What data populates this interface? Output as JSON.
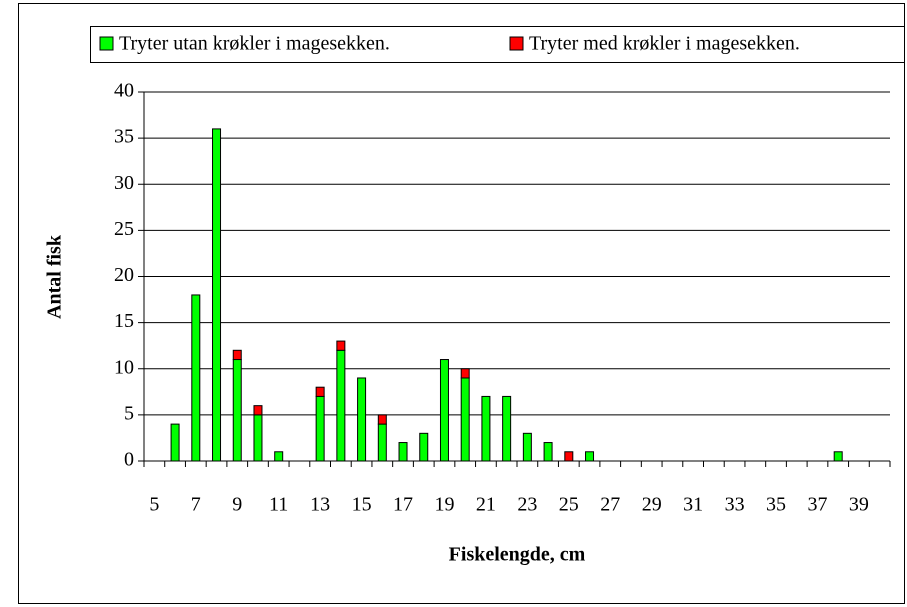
{
  "chart_data": {
    "type": "bar",
    "stacked": true,
    "x_label": "Fiskelengde, cm",
    "y_label": "Antal fisk",
    "categories": [
      "5",
      null,
      "7",
      null,
      "9",
      null,
      "11",
      null,
      "13",
      null,
      "15",
      null,
      "17",
      null,
      "19",
      null,
      "21",
      null,
      "23",
      null,
      "25",
      null,
      "27",
      null,
      "29",
      null,
      "31",
      null,
      "33",
      null,
      "35",
      null,
      "37",
      null,
      "39",
      null
    ],
    "series": [
      {
        "name": "Tryter utan krøkler i magesekken.",
        "color": "#00ff00",
        "values": [
          0,
          4,
          18,
          36,
          11,
          5,
          1,
          0,
          7,
          12,
          9,
          4,
          2,
          3,
          11,
          9,
          7,
          7,
          3,
          2,
          0,
          1,
          0,
          0,
          0,
          0,
          0,
          0,
          0,
          0,
          0,
          0,
          0,
          1,
          0,
          0
        ]
      },
      {
        "name": "Tryter med krøkler i magesekken.",
        "color": "#ff0000",
        "values": [
          0,
          0,
          0,
          0,
          1,
          1,
          0,
          0,
          1,
          1,
          0,
          1,
          0,
          0,
          0,
          1,
          0,
          0,
          0,
          0,
          1,
          0,
          0,
          0,
          0,
          0,
          0,
          0,
          0,
          0,
          0,
          0,
          0,
          0,
          0,
          0
        ]
      }
    ],
    "ylim": [
      0,
      40
    ],
    "yticks": [
      0,
      5,
      10,
      15,
      20,
      25,
      30,
      35,
      40
    ],
    "grid": true,
    "legend": "top"
  }
}
